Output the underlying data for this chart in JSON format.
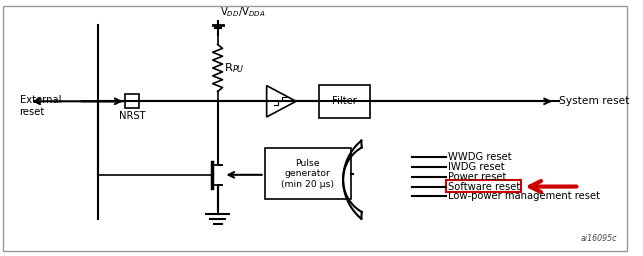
{
  "bg_color": "#ffffff",
  "border_color": "#aaaaaa",
  "title_code": "ai16095c",
  "labels": {
    "external_reset": "External\nreset",
    "nrst": "NRST",
    "vdd_vdda": "V$_{DD}$/V$_{DDA}$",
    "rpu": "R$_{PU}$",
    "filter": "Filter",
    "pulse_gen": "Pulse\ngenerator\n(min 20 μs)",
    "system_reset": "System reset",
    "wwdg": "WWDG reset",
    "iwdg": "IWDG reset",
    "power": "Power reset",
    "software": "Software reset",
    "low_power": "Low-power management reset"
  },
  "red_arrow_color": "#cc0000",
  "box_color": "#cc0000",
  "line_color": "#000000",
  "font_size": 7.2
}
